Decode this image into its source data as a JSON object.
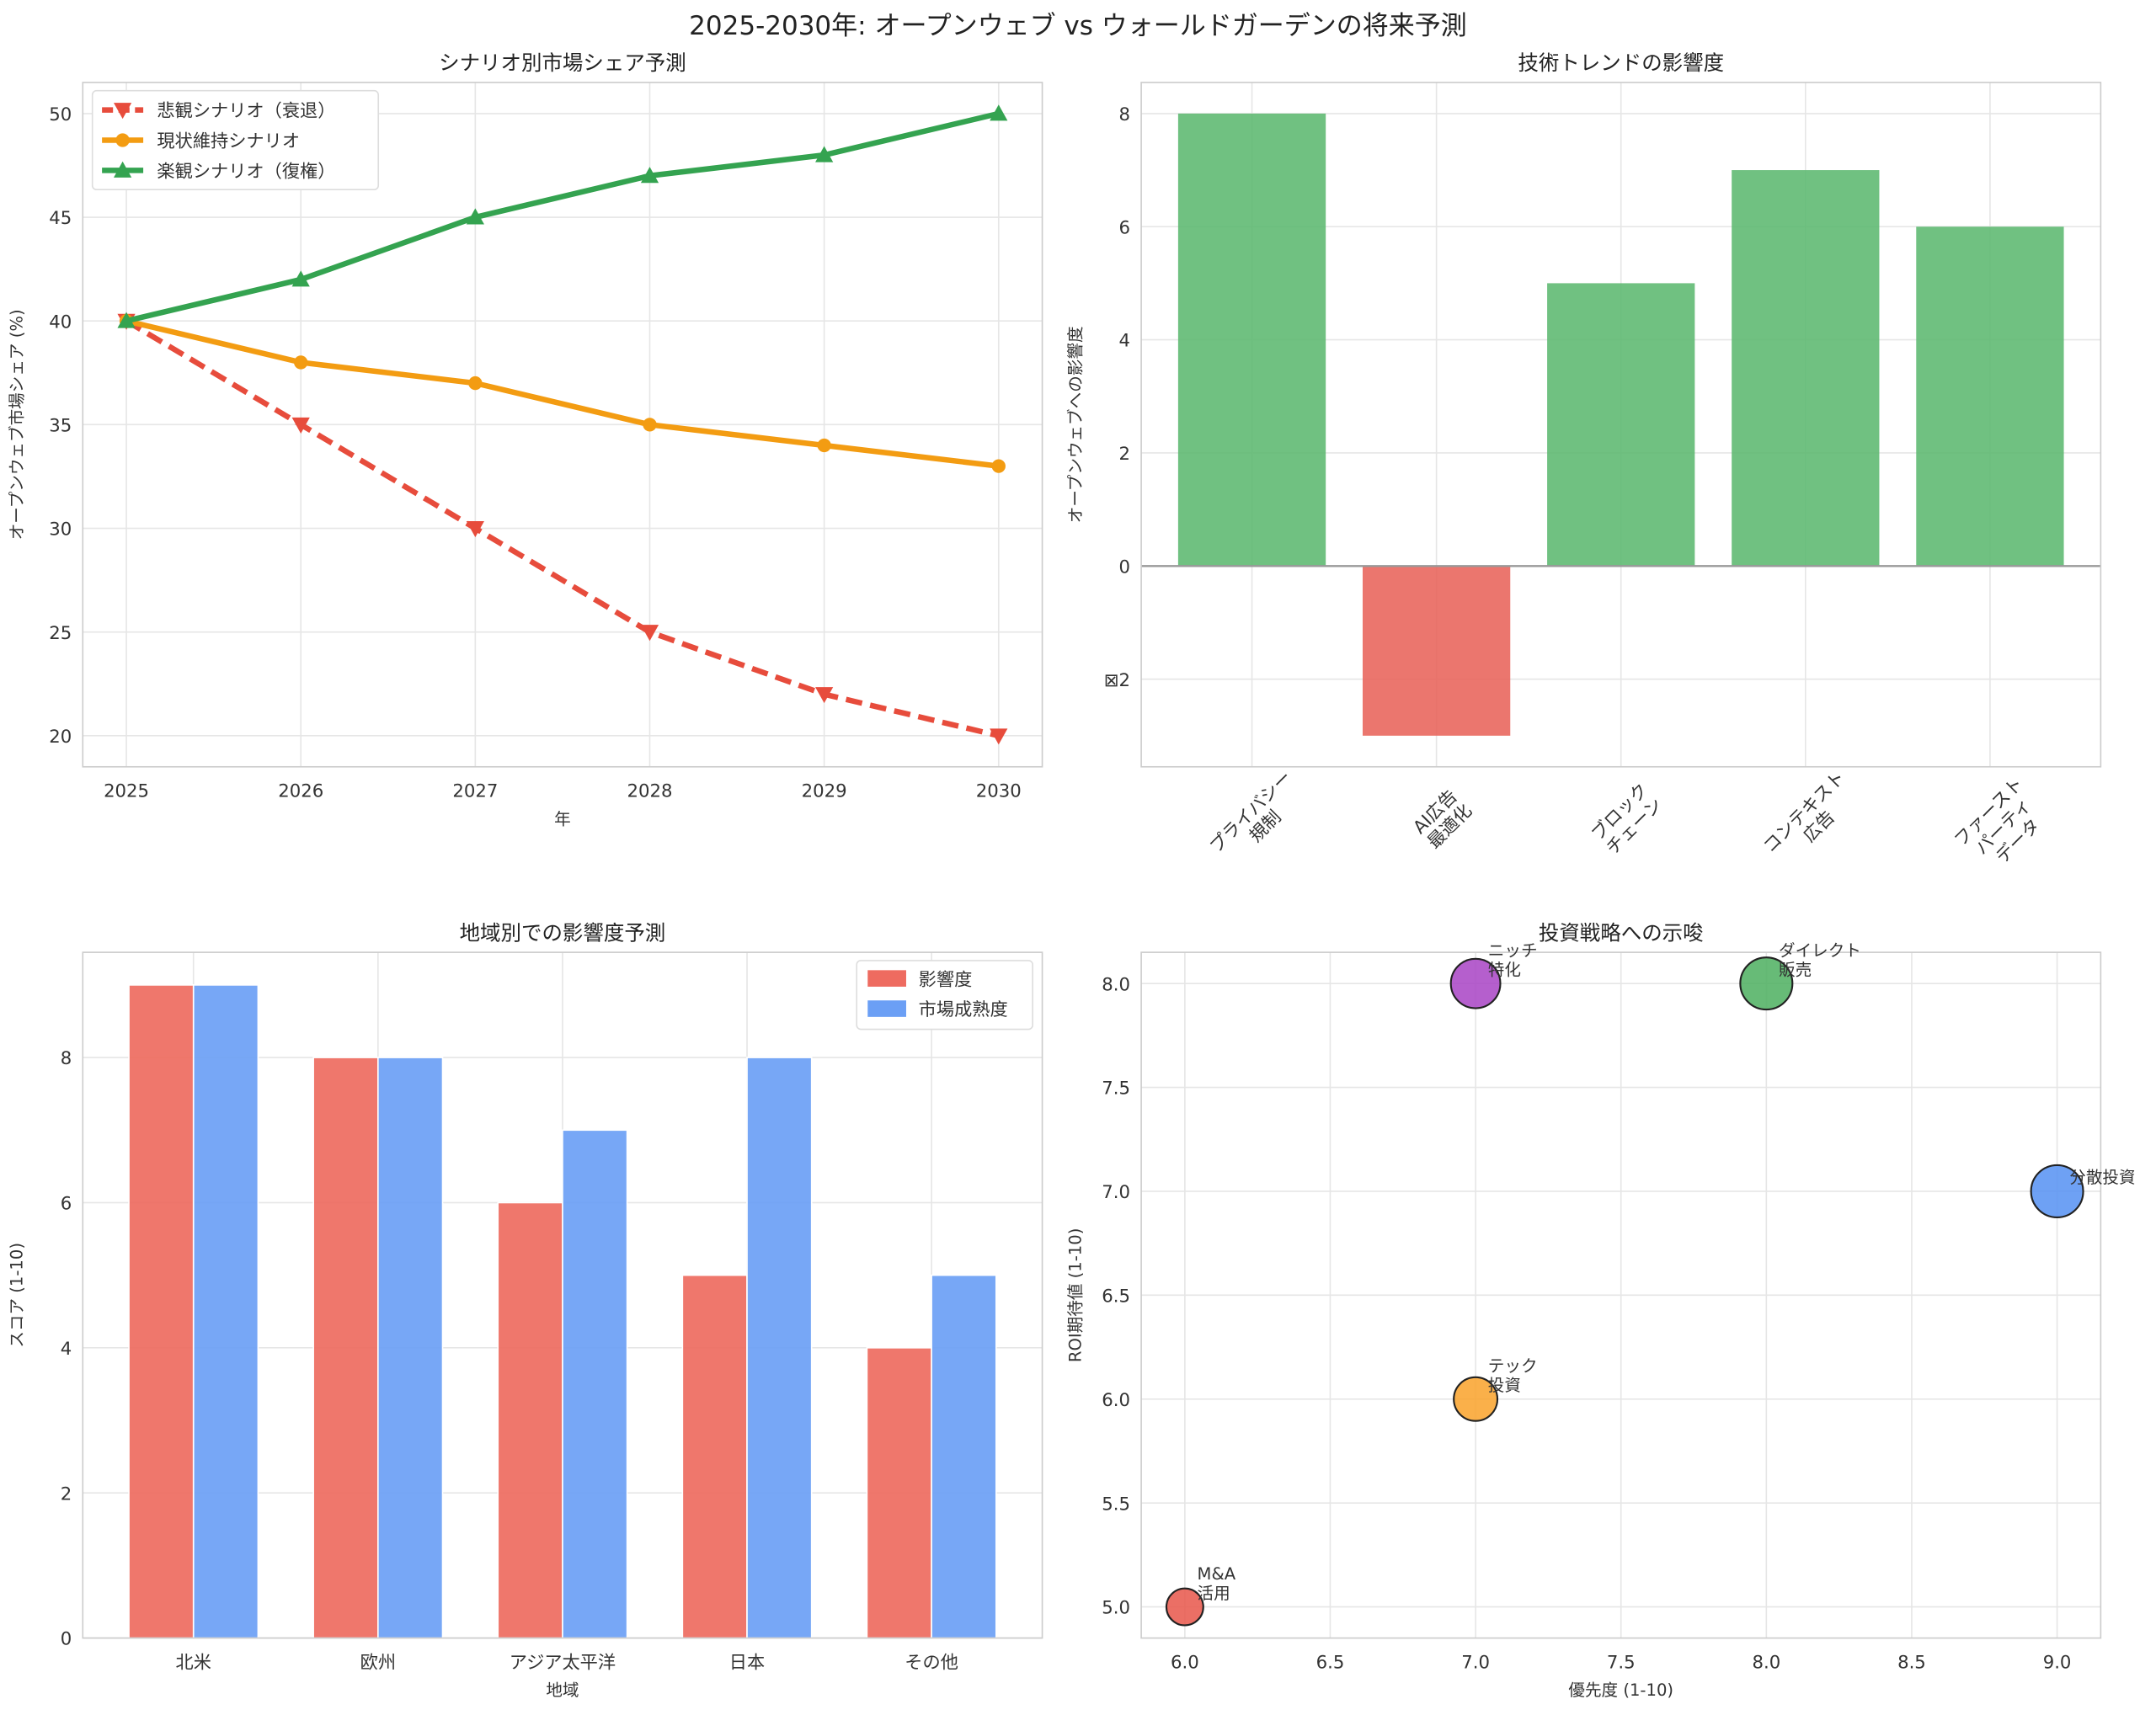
{
  "suptitle": "2025-2030年: オープンウェブ vs ウォールドガーデンの将来予測",
  "chart_data": [
    {
      "id": "scenario",
      "type": "line",
      "title": "シナリオ別市場シェア予測",
      "xlabel": "年",
      "ylabel": "オープンウェブ市場シェア (%)",
      "x": [
        2025,
        2026,
        2027,
        2028,
        2029,
        2030
      ],
      "xlim": [
        2024.75,
        2030.25
      ],
      "ylim": [
        18.5,
        51.5
      ],
      "yticks": [
        20,
        25,
        30,
        35,
        40,
        45,
        50
      ],
      "grid": true,
      "legend_position": "top-left",
      "series": [
        {
          "name": "悲観シナリオ（衰退）",
          "values": [
            40,
            35,
            30,
            25,
            22,
            20
          ],
          "color": "#e74c3c",
          "marker": "triangle-down",
          "dashed": true
        },
        {
          "name": "現状維持シナリオ",
          "values": [
            40,
            38,
            37,
            35,
            34,
            33
          ],
          "color": "#f39c12",
          "marker": "circle",
          "dashed": false
        },
        {
          "name": "楽観シナリオ（復権）",
          "values": [
            40,
            42,
            45,
            47,
            48,
            50
          ],
          "color": "#34a350",
          "marker": "triangle-up",
          "dashed": false
        }
      ]
    },
    {
      "id": "tech",
      "type": "bar",
      "title": "技術トレンドの影響度",
      "xlabel": "",
      "ylabel": "オープンウェブへの影響度",
      "categories": [
        "プライバシー\n規制",
        "AI広告\n最適化",
        "ブロック\nチェーン",
        "コンテキスト\n広告",
        "ファースト\nパーティ\nデータ"
      ],
      "values": [
        8,
        -3,
        5,
        7,
        6
      ],
      "ylim": [
        -3.55,
        8.55
      ],
      "yticks": [
        -2,
        0,
        2,
        4,
        6,
        8
      ],
      "ytick_labels": [
        "⊠2",
        "0",
        "2",
        "4",
        "6",
        "8"
      ],
      "positive_color": "#5cb870",
      "negative_color": "#e8635a",
      "grid": true
    },
    {
      "id": "region",
      "type": "bar",
      "title": "地域別での影響度予測",
      "xlabel": "地域",
      "ylabel": "スコア (1-10)",
      "categories": [
        "北米",
        "欧州",
        "アジア太平洋",
        "日本",
        "その他"
      ],
      "ylim": [
        0,
        9.45
      ],
      "yticks": [
        0,
        2,
        4,
        6,
        8
      ],
      "legend_position": "top-right",
      "grid": true,
      "series": [
        {
          "name": "影響度",
          "values": [
            9,
            8,
            6,
            5,
            4
          ],
          "color": "#ee6b60"
        },
        {
          "name": "市場成熟度",
          "values": [
            9,
            8,
            7,
            8,
            5
          ],
          "color": "#6b9ff5"
        }
      ]
    },
    {
      "id": "invest",
      "type": "scatter",
      "title": "投資戦略への示唆",
      "xlabel": "優先度 (1-10)",
      "ylabel": "ROI期待値 (1-10)",
      "xlim": [
        5.85,
        9.15
      ],
      "ylim": [
        4.85,
        8.15
      ],
      "xticks": [
        6.0,
        6.5,
        7.0,
        7.5,
        8.0,
        8.5,
        9.0
      ],
      "yticks": [
        5.0,
        5.5,
        6.0,
        6.5,
        7.0,
        7.5,
        8.0
      ],
      "grid": true,
      "points": [
        {
          "label": "M&A\n活用",
          "x": 6,
          "y": 5,
          "size": 5,
          "color": "#e8564a"
        },
        {
          "label": "テック\n投資",
          "x": 7,
          "y": 6,
          "size": 7,
          "color": "#f9a22a"
        },
        {
          "label": "ニッチ\n特化",
          "x": 7,
          "y": 8,
          "size": 9,
          "color": "#a843c4"
        },
        {
          "label": "ダイレクト\n販売",
          "x": 8,
          "y": 8,
          "size": 10,
          "color": "#4caf5f"
        },
        {
          "label": "分散投資",
          "x": 9,
          "y": 7,
          "size": 10,
          "color": "#5590f2"
        }
      ]
    }
  ]
}
